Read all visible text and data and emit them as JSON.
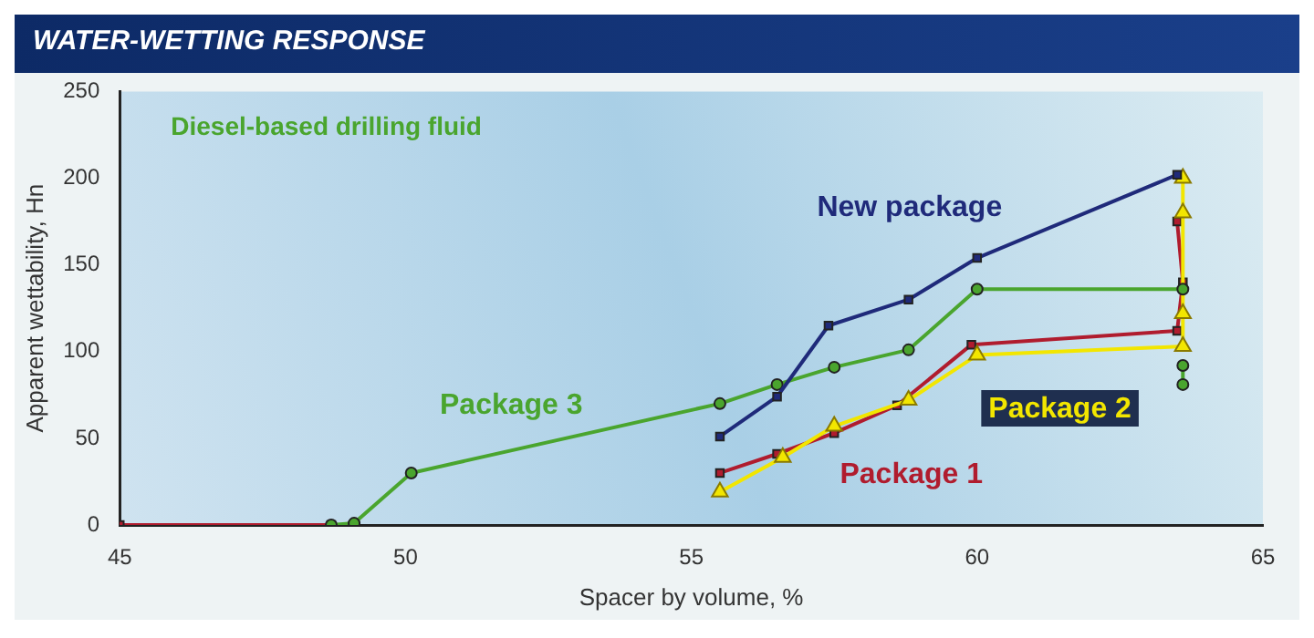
{
  "chart_data": {
    "type": "line",
    "title": "WATER-WETTING RESPONSE",
    "xlabel": "Spacer by volume, %",
    "ylabel": "Apparent wettability, Hn",
    "xlim": [
      45,
      65
    ],
    "xticks": [
      45,
      50,
      55,
      60,
      65
    ],
    "ylim": [
      0,
      250
    ],
    "yticks": [
      0,
      50,
      100,
      150,
      200,
      250
    ],
    "grid": false,
    "legend": false,
    "annotations": [
      "Diesel-based drilling fluid"
    ],
    "series": [
      {
        "name": "New package",
        "color": "#1f2a7a",
        "marker": "square",
        "x": [
          55.5,
          56.5,
          57.4,
          58.8,
          60.0,
          63.5
        ],
        "values": [
          51,
          74,
          115,
          130,
          154,
          202
        ]
      },
      {
        "name": "Package 3",
        "color": "#4aa52e",
        "marker": "circle",
        "x": [
          48.7,
          49.1,
          50.1,
          55.5,
          56.5,
          57.5,
          58.8,
          60.0,
          63.6,
          null,
          63.6,
          63.6
        ],
        "values": [
          0,
          1,
          30,
          70,
          81,
          91,
          101,
          136,
          136,
          null,
          92,
          81
        ]
      },
      {
        "name": "Package 2",
        "color": "#f2e600",
        "marker": "triangle",
        "x": [
          55.5,
          56.6,
          57.5,
          58.8,
          60.0,
          63.6,
          63.6,
          63.6,
          63.6
        ],
        "values": [
          19,
          39,
          57,
          72,
          98,
          103,
          122,
          180,
          200
        ]
      },
      {
        "name": "Package 1",
        "color": "#b01c2e",
        "marker": "square",
        "x": [
          45,
          48.7,
          null,
          55.5,
          56.5,
          57.5,
          58.6,
          59.9,
          63.5,
          63.6,
          63.5
        ],
        "values": [
          0,
          0,
          null,
          30,
          41,
          53,
          69,
          104,
          112,
          140,
          175
        ]
      }
    ]
  }
}
